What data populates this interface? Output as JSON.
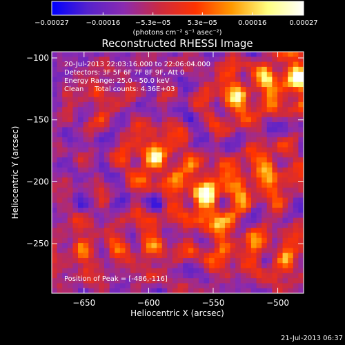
{
  "chart_data": {
    "type": "heatmap",
    "title": "Reconstructed RHESSI Image",
    "xlabel": "Heliocentric X (arcsec)",
    "ylabel": "Heliocentric Y (arcsec)",
    "xlim": [
      -675,
      -480
    ],
    "ylim": [
      -290,
      -95
    ],
    "x_ticks": [
      -650,
      -600,
      -550,
      -500
    ],
    "x_tick_labels": [
      "−650",
      "−600",
      "−550",
      "−500"
    ],
    "y_ticks": [
      -250,
      -200,
      -150,
      -100
    ],
    "y_tick_labels": [
      "−250",
      "−200",
      "−150",
      "−100"
    ],
    "colorbar": {
      "range": [
        -0.00027,
        0.00027
      ],
      "ticks": [
        -0.00027,
        -0.00016,
        -5.3e-05,
        5.3e-05,
        0.00016,
        0.00027
      ],
      "tick_labels": [
        "−0.00027",
        "−0.00016",
        "−5.3e−05",
        "5.3e−05",
        "0.00016",
        "0.00027"
      ],
      "unit_label": "(photons cm⁻² s⁻¹ asec⁻²)",
      "colors": [
        "#0000ff",
        "#5522cc",
        "#8a2bb0",
        "#cc2a40",
        "#ff3300",
        "#ff9900",
        "#ffff80",
        "#ffffff"
      ]
    },
    "annotations": [
      "20-Jul-2013 22:03:16.000 to 22:06:04.000",
      "Detectors: 3F 5F 6F 7F 8F 9F, Att 0",
      "Energy Range: 25.0 - 50.0 keV",
      "Clean     Total counts: 4.36E+03"
    ],
    "peak_text": "Position of Peak = [-486,-116]",
    "peak_position": [
      -486,
      -116
    ],
    "sources": [
      {
        "x": -486,
        "y": -116,
        "amp": 1.0
      },
      {
        "x": -530,
        "y": -130,
        "amp": 0.75
      },
      {
        "x": -595,
        "y": -180,
        "amp": 0.8
      },
      {
        "x": -555,
        "y": -210,
        "amp": 0.95
      },
      {
        "x": -510,
        "y": -195,
        "amp": 0.7
      },
      {
        "x": -540,
        "y": -250,
        "amp": 0.55
      },
      {
        "x": -600,
        "y": -250,
        "amp": 0.45
      },
      {
        "x": -650,
        "y": -255,
        "amp": 0.4
      },
      {
        "x": -495,
        "y": -260,
        "amp": 0.5
      },
      {
        "x": -640,
        "y": -130,
        "amp": 0.35
      }
    ]
  },
  "timestamp": "21-Jul-2013 06:37"
}
